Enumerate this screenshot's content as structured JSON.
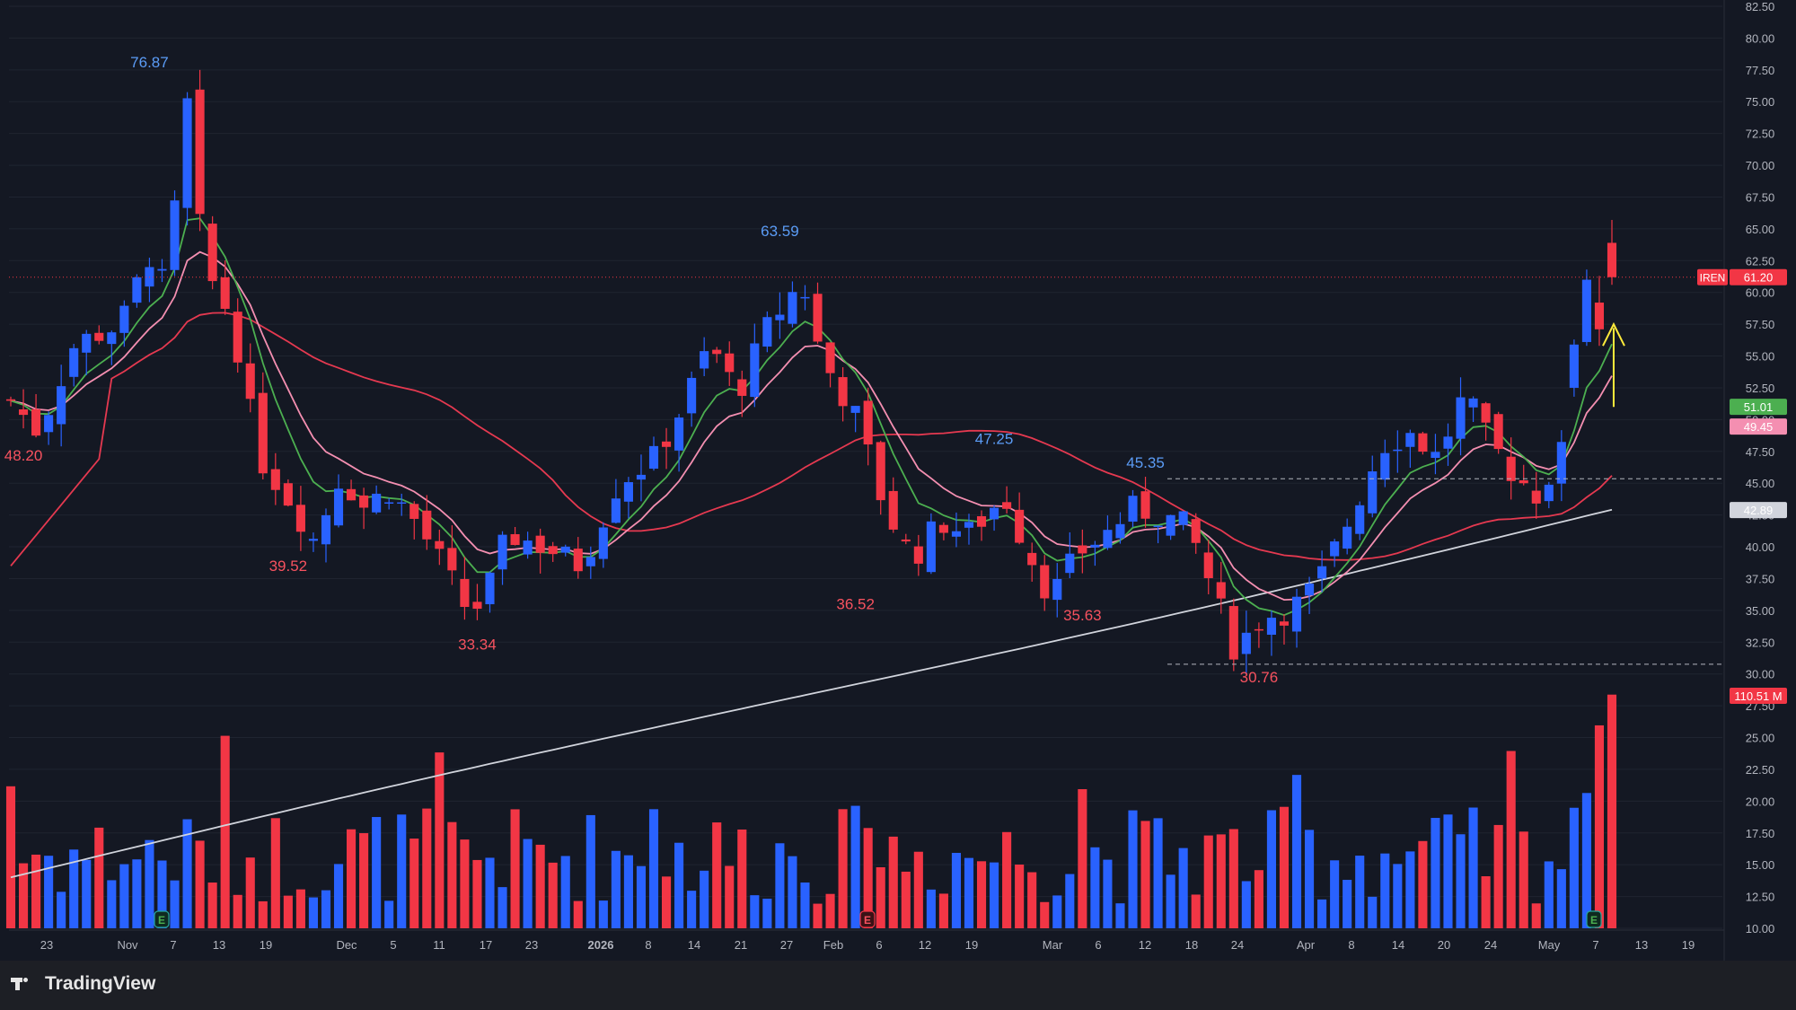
{
  "brand": {
    "name": "TradingView"
  },
  "colors": {
    "up": "#2962ff",
    "down": "#f23645",
    "background": "#141823",
    "grid": "#1f2430",
    "text": "#b2b5be",
    "ema_fast": "#4caf50",
    "ema_mid": "#f48fb1",
    "sma_50": "#e53950",
    "sma_200": "#d1d4dc",
    "arrow": "#ffeb3b"
  },
  "chart_data": {
    "type": "candlestick",
    "symbol": "IREN",
    "ylim": [
      10,
      82.5
    ],
    "y_ticks": [
      "82.50",
      "80.00",
      "77.50",
      "75.00",
      "72.50",
      "70.00",
      "67.50",
      "65.00",
      "62.50",
      "60.00",
      "57.50",
      "55.00",
      "52.50",
      "50.00",
      "47.50",
      "45.00",
      "42.50",
      "40.00",
      "37.50",
      "35.00",
      "32.50",
      "30.00",
      "27.50",
      "25.00",
      "22.50",
      "20.00",
      "17.50",
      "15.00",
      "12.50",
      "10.00"
    ],
    "x_ticks": [
      "23",
      "Nov",
      "7",
      "13",
      "19",
      "Dec",
      "5",
      "11",
      "17",
      "23",
      "2026",
      "8",
      "14",
      "21",
      "27",
      "Feb",
      "6",
      "12",
      "19",
      "Mar",
      "6",
      "12",
      "18",
      "24",
      "Apr",
      "8",
      "14",
      "20",
      "24",
      "May",
      "7",
      "13",
      "19"
    ],
    "price_labels": [
      {
        "text": "IREN",
        "value": "61.20",
        "color": "#f23645"
      },
      {
        "text": "",
        "value": "51.01",
        "color": "#4caf50"
      },
      {
        "text": "",
        "value": "49.45",
        "color": "#f48fb1"
      },
      {
        "text": "",
        "value": "42.89",
        "color": "#d1d4dc"
      },
      {
        "text": "",
        "value": "110.51 M",
        "color": "#f23645"
      }
    ],
    "annotations": [
      {
        "text": "76.87",
        "candle": 30,
        "price": 76.87,
        "kind": "high"
      },
      {
        "text": "48.20",
        "candle": 2,
        "price": 48.2,
        "kind": "low"
      },
      {
        "text": "39.52",
        "candle": 62,
        "price": 39.52,
        "kind": "low"
      },
      {
        "text": "33.34",
        "candle": 103,
        "price": 33.34,
        "kind": "low"
      },
      {
        "text": "63.59",
        "candle": 171,
        "price": 63.59,
        "kind": "high"
      },
      {
        "text": "36.52",
        "candle": 189,
        "price": 36.52,
        "kind": "low"
      },
      {
        "text": "47.25",
        "candle": 220,
        "price": 47.25,
        "kind": "high"
      },
      {
        "text": "35.63",
        "candle": 240,
        "price": 35.63,
        "kind": "low"
      },
      {
        "text": "45.35",
        "candle": 254,
        "price": 45.35,
        "kind": "high"
      },
      {
        "text": "30.76",
        "candle": 278,
        "price": 30.76,
        "kind": "low"
      }
    ],
    "levels": [
      45.35,
      30.76
    ],
    "last_price": 61.2,
    "earnings_markers": [
      "E",
      "E",
      "E"
    ],
    "candles_count": 351
  }
}
